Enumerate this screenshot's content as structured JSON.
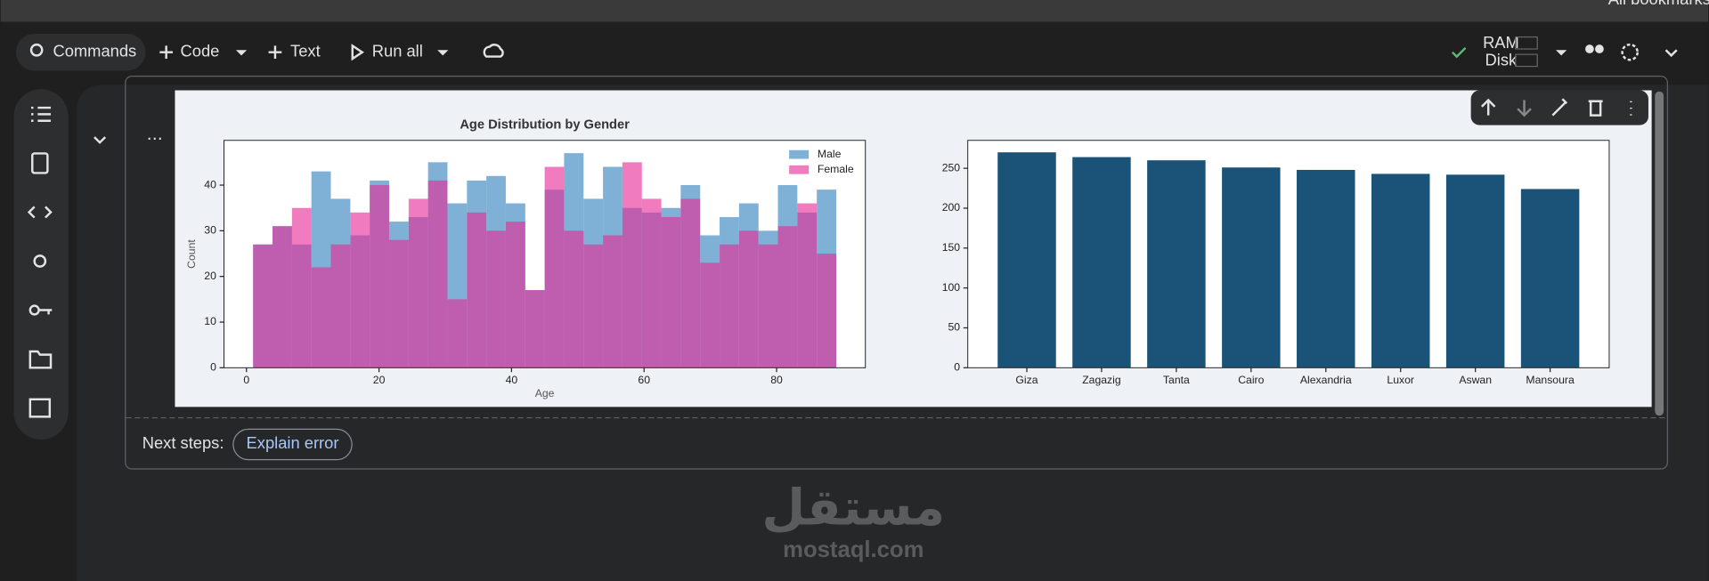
{
  "ui": {
    "bookmarks": "All bookmarks",
    "toolbar": {
      "commands": "Commands",
      "code": "Code",
      "text": "Text",
      "run_all": "Run all",
      "ram": "RAM",
      "disk": "Disk"
    },
    "next_steps": {
      "label": "Next steps:",
      "button": "Explain error"
    },
    "watermark": {
      "arabic": "مستقل",
      "latin": "mostaql.com"
    }
  },
  "chart_data": [
    {
      "type": "histogram",
      "title": "Age Distribution by Gender",
      "x_label": "Age",
      "y_label": "Count",
      "bins": [
        1,
        3.93,
        6.87,
        9.8,
        12.73,
        15.67,
        18.6,
        21.53,
        24.47,
        27.4,
        30.33,
        33.27,
        36.2,
        39.13,
        42.07,
        45,
        47.93,
        50.87,
        53.8,
        56.73,
        59.67,
        62.6,
        65.53,
        68.47,
        71.4,
        74.33,
        77.27,
        80.2,
        83.13,
        86.07,
        89
      ],
      "series": [
        {
          "name": "Male",
          "color": "#7fb0d5",
          "values": [
            27,
            31,
            27,
            43,
            37,
            29,
            41,
            32,
            33,
            45,
            36,
            41,
            42,
            36,
            17,
            39,
            47,
            37,
            44,
            35,
            34,
            35,
            40,
            29,
            33,
            36,
            30,
            40,
            34,
            39
          ]
        },
        {
          "name": "Female",
          "color": "#e62b97",
          "values": [
            27,
            31,
            35,
            22,
            27,
            34,
            40,
            28,
            37,
            41,
            15,
            34,
            30,
            32,
            17,
            44,
            30,
            27,
            29,
            45,
            37,
            33,
            37,
            23,
            27,
            30,
            27,
            31,
            36,
            25
          ]
        }
      ],
      "xlim": [
        -3.4,
        93.4
      ],
      "xticks": [
        0,
        20,
        40,
        60,
        80
      ],
      "ylim": [
        0,
        49.8
      ],
      "yticks": [
        0,
        10,
        20,
        30,
        40
      ],
      "legend": "upper right"
    },
    {
      "type": "bar",
      "categories": [
        "Giza",
        "Zagazig",
        "Tanta",
        "Cairo",
        "Alexandria",
        "Luxor",
        "Aswan",
        "Mansoura"
      ],
      "values": [
        270,
        264,
        260,
        251,
        248,
        243,
        242,
        224
      ],
      "color": "#1b5378",
      "ylim": [
        0,
        285
      ],
      "yticks": [
        0,
        50,
        100,
        150,
        200,
        250
      ]
    }
  ]
}
